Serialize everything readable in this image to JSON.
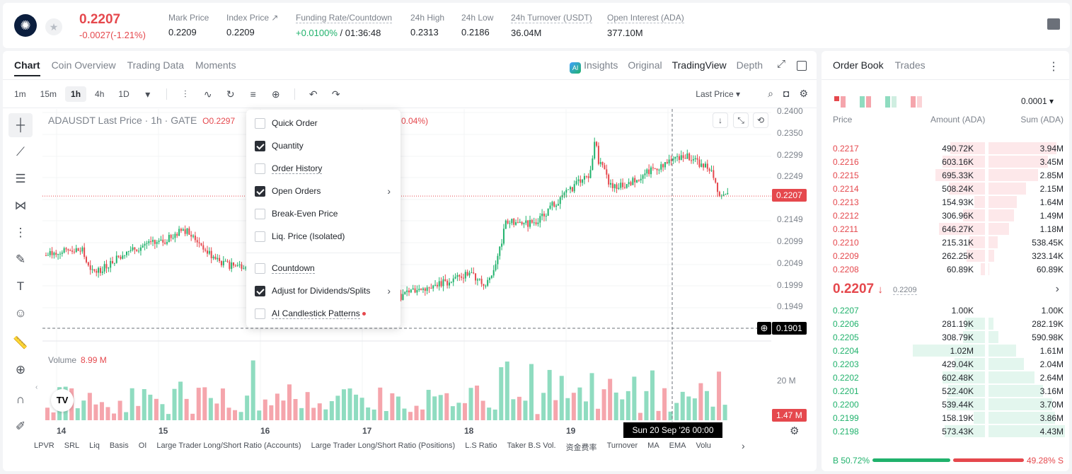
{
  "header": {
    "logo_icon": "cardano-logo-icon",
    "price": "0.2207",
    "change": "-0.0027(-1.21%)",
    "stats": [
      {
        "label": "Mark Price",
        "value": "0.2209"
      },
      {
        "label": "Index Price ↗",
        "value": "0.2209"
      },
      {
        "label": "Funding Rate/Countdown",
        "value_green": "+0.0100%",
        "value": " / 01:36:48"
      },
      {
        "label": "24h High",
        "value": "0.2313"
      },
      {
        "label": "24h Low",
        "value": "0.2186"
      },
      {
        "label": "24h Turnover (USDT)",
        "value": "36.04M"
      },
      {
        "label": "Open Interest (ADA)",
        "value": "377.10M"
      }
    ]
  },
  "chart_tabs": [
    "Chart",
    "Coin Overview",
    "Trading Data",
    "Moments"
  ],
  "view_tabs": {
    "insights": "Insights",
    "ai_badge": "AI",
    "original": "Original",
    "tradingview": "TradingView",
    "depth": "Depth"
  },
  "toolbar": {
    "timeframes": [
      "1m",
      "15m",
      "1h",
      "4h",
      "1D"
    ],
    "active_timeframe": "1h",
    "last_price_label": "Last Price"
  },
  "chart": {
    "symbol_title": "ADAUSDT Last Price · 1h · GATE",
    "open_value": "O0.2297",
    "pct_fragment": "0.04%)",
    "volume_label": "Volume",
    "volume_value": "8.99 M",
    "y_ticks": [
      "0.2400",
      "0.2350",
      "0.2299",
      "0.2249",
      "0.2149",
      "0.2099",
      "0.2049",
      "0.1999",
      "0.1949"
    ],
    "price_tag": "0.2207",
    "crosshair_tag": "0.1901",
    "vol_ticks": [
      "20 M"
    ],
    "vol_tag": "1.47 M",
    "x_ticks": [
      "14",
      "15",
      "16",
      "17",
      "18",
      "19"
    ],
    "time_tag": "Sun 20 Sep '26   00:00",
    "tv_logo": "TV"
  },
  "indicators": [
    "LPVR",
    "SRL",
    "Liq",
    "Basis",
    "OI",
    "Large Trader Long/Short Ratio (Accounts)",
    "Large Trader Long/Short Ratio (Positions)",
    "L.S Ratio",
    "Taker B.S Vol.",
    "资金费率",
    "Turnover",
    "MA",
    "EMA",
    "Volu"
  ],
  "settings_menu": {
    "items": [
      {
        "label": "Quick Order",
        "checked": false,
        "underline": false
      },
      {
        "label": "Quantity",
        "checked": true,
        "underline": false
      },
      {
        "label": "Order History",
        "checked": false,
        "underline": true
      },
      {
        "label": "Open Orders",
        "checked": true,
        "underline": false,
        "submenu": true
      },
      {
        "label": "Break-Even Price",
        "checked": false,
        "underline": false
      },
      {
        "label": "Liq. Price (Isolated)",
        "checked": false,
        "underline": false
      },
      {
        "label": "Countdown",
        "checked": false,
        "underline": true
      },
      {
        "label": "Adjust for Dividends/Splits",
        "checked": true,
        "underline": false,
        "submenu": true
      },
      {
        "label": "AI Candlestick Patterns",
        "checked": false,
        "underline": true,
        "dot": true
      }
    ]
  },
  "orderbook": {
    "tabs": [
      "Order Book",
      "Trades"
    ],
    "precision": "0.0001",
    "headers": {
      "price": "Price",
      "amount": "Amount (ADA)",
      "sum": "Sum (ADA)"
    },
    "asks": [
      {
        "price": "0.2217",
        "amount": "490.72K",
        "sum": "3.94M"
      },
      {
        "price": "0.2216",
        "amount": "603.16K",
        "sum": "3.45M"
      },
      {
        "price": "0.2215",
        "amount": "695.33K",
        "sum": "2.85M"
      },
      {
        "price": "0.2214",
        "amount": "508.24K",
        "sum": "2.15M"
      },
      {
        "price": "0.2213",
        "amount": "154.93K",
        "sum": "1.64M"
      },
      {
        "price": "0.2212",
        "amount": "306.96K",
        "sum": "1.49M"
      },
      {
        "price": "0.2211",
        "amount": "646.27K",
        "sum": "1.18M"
      },
      {
        "price": "0.2210",
        "amount": "215.31K",
        "sum": "538.45K"
      },
      {
        "price": "0.2209",
        "amount": "262.25K",
        "sum": "323.14K"
      },
      {
        "price": "0.2208",
        "amount": "60.89K",
        "sum": "60.89K"
      }
    ],
    "mid_price": "0.2207",
    "mid_arrow": "↓",
    "mid_mark": "0.2209",
    "bids": [
      {
        "price": "0.2207",
        "amount": "1.00K",
        "sum": "1.00K"
      },
      {
        "price": "0.2206",
        "amount": "281.19K",
        "sum": "282.19K"
      },
      {
        "price": "0.2205",
        "amount": "308.79K",
        "sum": "590.98K"
      },
      {
        "price": "0.2204",
        "amount": "1.02M",
        "sum": "1.61M"
      },
      {
        "price": "0.2203",
        "amount": "429.04K",
        "sum": "2.04M"
      },
      {
        "price": "0.2202",
        "amount": "602.48K",
        "sum": "2.64M"
      },
      {
        "price": "0.2201",
        "amount": "522.40K",
        "sum": "3.16M"
      },
      {
        "price": "0.2200",
        "amount": "539.44K",
        "sum": "3.70M"
      },
      {
        "price": "0.2199",
        "amount": "158.19K",
        "sum": "3.86M"
      },
      {
        "price": "0.2198",
        "amount": "573.43K",
        "sum": "4.43M"
      }
    ],
    "buy_ratio": "B 50.72%",
    "sell_ratio": "49.28% S"
  },
  "colors": {
    "up": "#20b26c",
    "down": "#e5484d",
    "up_vol": "#8fdcc0",
    "down_vol": "#f5a5ac"
  }
}
